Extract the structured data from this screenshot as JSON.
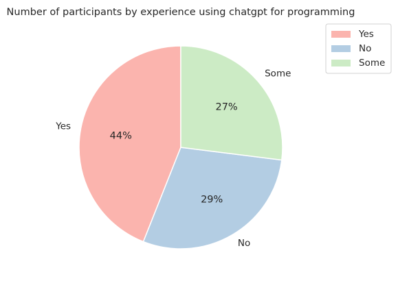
{
  "chart_data": {
    "type": "pie",
    "title": "Number of participants by experience using chatgpt for programming",
    "categories": [
      "Yes",
      "No",
      "Some"
    ],
    "values": [
      44,
      29,
      27
    ],
    "value_labels": [
      "44%",
      "29%",
      "27%"
    ],
    "colors": [
      "#fbb4ae",
      "#b3cde3",
      "#ccebc5"
    ],
    "start_angle": "top (12 o'clock)",
    "direction": "counterclockwise",
    "legend": {
      "placement": "top-right",
      "entries": [
        "Yes",
        "No",
        "Some"
      ]
    }
  }
}
